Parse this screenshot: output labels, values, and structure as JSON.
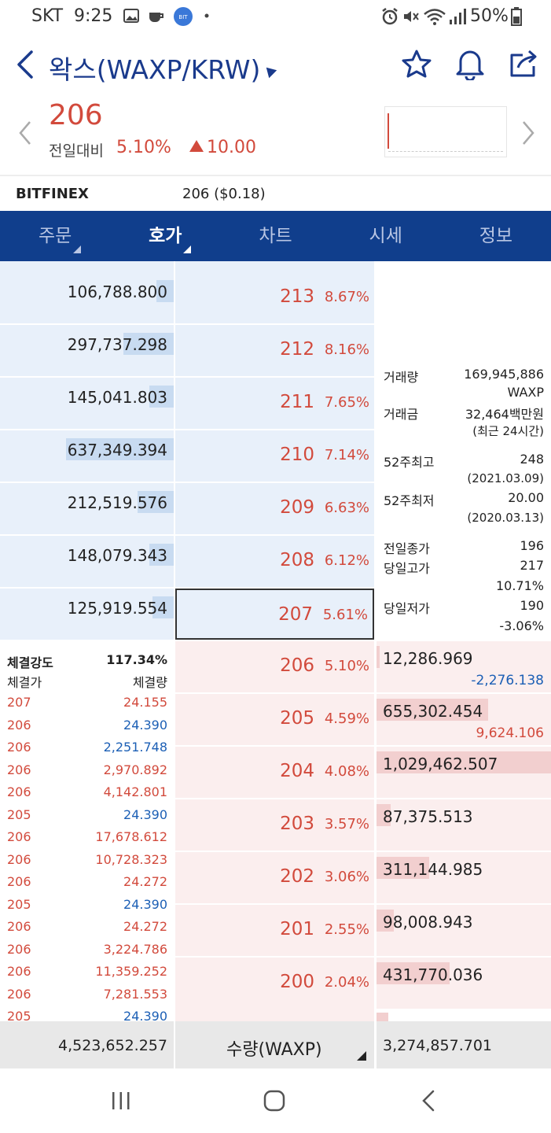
{
  "status_bar": {
    "carrier": "SKT",
    "time": "9:25",
    "battery": "50%",
    "icons": [
      "image-icon",
      "coffee-icon",
      "app-badge-icon",
      "dot-icon",
      "alarm-icon",
      "mute-icon",
      "wifi-icon",
      "signal-icon",
      "battery-icon"
    ]
  },
  "header": {
    "title": "왁스(WAXP/KRW)",
    "icons": [
      "back-icon",
      "star-icon",
      "bell-icon",
      "share-icon"
    ]
  },
  "price": {
    "current": "206",
    "change_label": "전일대비",
    "change_pct": "5.10%",
    "change_amt": "10.00"
  },
  "exchange": {
    "name": "BITFINEX",
    "value": "206 ($0.18)"
  },
  "tabs": [
    "주문",
    "호가",
    "차트",
    "시세",
    "정보"
  ],
  "active_tab": "호가",
  "asks": [
    {
      "qty": "106,788.800",
      "price": "213",
      "pct": "8.67%",
      "fill": 0.1
    },
    {
      "qty": "297,737.298",
      "price": "212",
      "pct": "8.16%",
      "fill": 0.29
    },
    {
      "qty": "145,041.803",
      "price": "211",
      "pct": "7.65%",
      "fill": 0.14
    },
    {
      "qty": "637,349.394",
      "price": "210",
      "pct": "7.14%",
      "fill": 0.62
    },
    {
      "qty": "212,519.576",
      "price": "209",
      "pct": "6.63%",
      "fill": 0.21
    },
    {
      "qty": "148,079.343",
      "price": "208",
      "pct": "6.12%",
      "fill": 0.14
    },
    {
      "qty": "125,919.554",
      "price": "207",
      "pct": "5.61%",
      "fill": 0.12
    }
  ],
  "bids": [
    {
      "qty": "12,286.969",
      "price": "206",
      "pct": "5.10%",
      "change": "-2,276.138",
      "change_color": "#1c5fb5",
      "fill": 0.01
    },
    {
      "qty": "655,302.454",
      "price": "205",
      "pct": "4.59%",
      "change": "9,624.106",
      "change_color": "#d24a3c",
      "fill": 0.64
    },
    {
      "qty": "1,029,462.507",
      "price": "204",
      "pct": "4.08%",
      "change": "",
      "change_color": "#d24a3c",
      "fill": 1.0
    },
    {
      "qty": "87,375.513",
      "price": "203",
      "pct": "3.57%",
      "change": "",
      "change_color": "#d24a3c",
      "fill": 0.08
    },
    {
      "qty": "311,144.985",
      "price": "202",
      "pct": "3.06%",
      "change": "",
      "change_color": "#d24a3c",
      "fill": 0.3
    },
    {
      "qty": "98,008.943",
      "price": "201",
      "pct": "2.55%",
      "change": "",
      "change_color": "#d24a3c",
      "fill": 0.1
    },
    {
      "qty": "431,770.036",
      "price": "200",
      "pct": "2.04%",
      "change": "",
      "change_color": "#d24a3c",
      "fill": 0.42
    }
  ],
  "info": {
    "volume_label": "거래량",
    "volume_value": "169,945,886",
    "volume_unit": "WAXP",
    "amount_label": "거래금",
    "amount_value": "32,464백만원",
    "recent_note": "(최근 24시간)",
    "high52_label": "52주최고",
    "high52_value": "248",
    "high52_date": "(2021.03.09)",
    "low52_label": "52주최저",
    "low52_value": "20.00",
    "low52_date": "(2020.03.13)",
    "prev_close_label": "전일종가",
    "prev_close_value": "196",
    "day_high_label": "당일고가",
    "day_high_value": "217",
    "day_high_pct": "10.71%",
    "day_low_label": "당일저가",
    "day_low_value": "190",
    "day_low_pct": "-3.06%"
  },
  "trades": {
    "strength_label": "체결강도",
    "strength_value": "117.34%",
    "price_header": "체결가",
    "qty_header": "체결량",
    "rows": [
      {
        "price": "207",
        "qty": "24.155",
        "color": "#d24a3c"
      },
      {
        "price": "206",
        "qty": "24.390",
        "color": "#1c5fb5"
      },
      {
        "price": "206",
        "qty": "2,251.748",
        "color": "#1c5fb5"
      },
      {
        "price": "206",
        "qty": "2,970.892",
        "color": "#d24a3c"
      },
      {
        "price": "206",
        "qty": "4,142.801",
        "color": "#d24a3c"
      },
      {
        "price": "205",
        "qty": "24.390",
        "color": "#1c5fb5"
      },
      {
        "price": "206",
        "qty": "17,678.612",
        "color": "#d24a3c"
      },
      {
        "price": "206",
        "qty": "10,728.323",
        "color": "#d24a3c"
      },
      {
        "price": "206",
        "qty": "24.272",
        "color": "#d24a3c"
      },
      {
        "price": "205",
        "qty": "24.390",
        "color": "#1c5fb5"
      },
      {
        "price": "206",
        "qty": "24.272",
        "color": "#d24a3c"
      },
      {
        "price": "206",
        "qty": "3,224.786",
        "color": "#d24a3c"
      },
      {
        "price": "206",
        "qty": "11,359.252",
        "color": "#d24a3c"
      },
      {
        "price": "206",
        "qty": "7,281.553",
        "color": "#d24a3c"
      },
      {
        "price": "205",
        "qty": "24.390",
        "color": "#1c5fb5"
      }
    ]
  },
  "footer": {
    "ask_total": "4,523,652.257",
    "unit_label": "수량(WAXP)",
    "bid_total": "3,274,857.701"
  },
  "nav": [
    "recent-apps-icon",
    "home-icon",
    "back-nav-icon"
  ]
}
